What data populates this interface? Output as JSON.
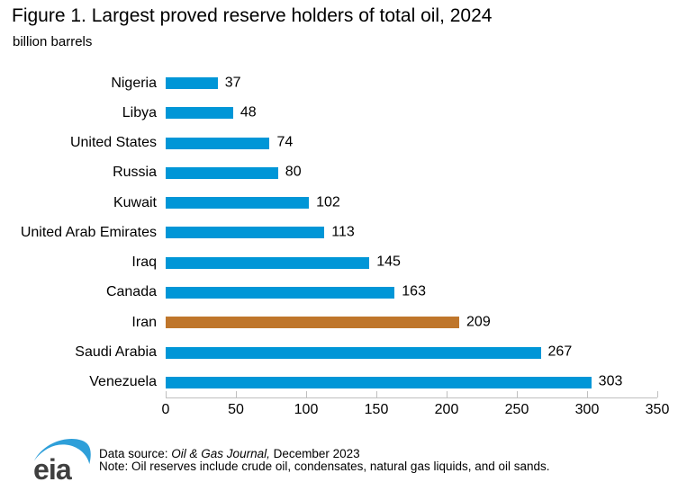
{
  "chart_data": {
    "type": "bar",
    "orientation": "horizontal",
    "title": "Figure 1. Largest proved reserve holders of total oil, 2024",
    "subtitle": "billion barrels",
    "categories": [
      "Nigeria",
      "Libya",
      "United States",
      "Russia",
      "Kuwait",
      "United Arab Emirates",
      "Iraq",
      "Canada",
      "Iran",
      "Saudi Arabia",
      "Venezuela"
    ],
    "values": [
      37,
      48,
      74,
      80,
      102,
      113,
      145,
      163,
      209,
      267,
      303
    ],
    "highlighted_category": "Iran",
    "value_labels_shown": true,
    "xlabel": "",
    "ylabel": "billion barrels",
    "xlim": [
      0,
      350
    ],
    "xticks": [
      0,
      50,
      100,
      150,
      200,
      250,
      300,
      350
    ],
    "grid": "off",
    "legend": "none"
  },
  "colors": {
    "bar_default": "#0096d7",
    "bar_highlight": "#bf762b",
    "axis_line": "#bfbfbf",
    "text": "#000000",
    "logo_blue": "#2e9fd9",
    "logo_gray": "#3f3f3f"
  },
  "footer": {
    "logo_text": "eia",
    "source_prefix": "Data source: ",
    "source_italic": "Oil & Gas Journal,",
    "source_suffix": " December 2023",
    "note": "Note: Oil reserves include crude oil, condensates, natural gas liquids, and oil sands."
  }
}
